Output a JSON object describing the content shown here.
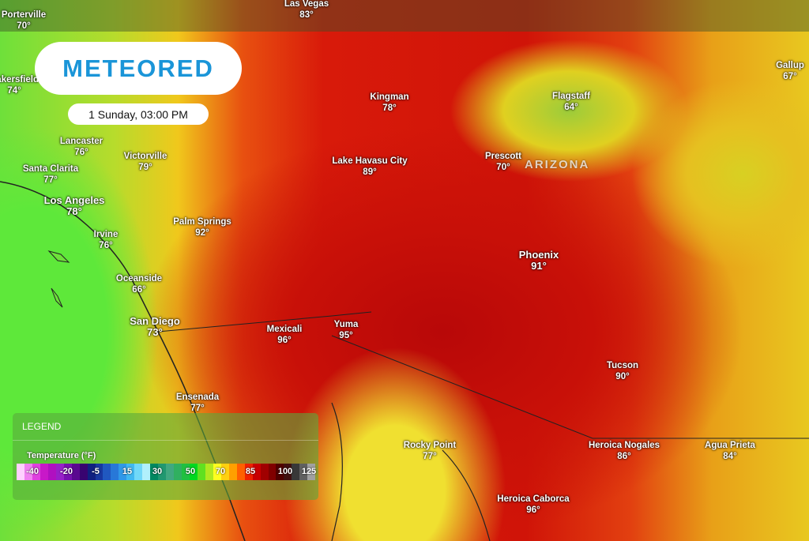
{
  "logo": {
    "text": "METEORED"
  },
  "timestamp": "1 Sunday, 03:00 PM",
  "state_label": "ARIZONA",
  "cities": [
    {
      "name": "Porterville",
      "temp": "70°"
    },
    {
      "name": "Las Vegas",
      "temp": "83°"
    },
    {
      "name": "Gallup",
      "temp": "67°"
    },
    {
      "name": "Bakersfield",
      "temp": "74°"
    },
    {
      "name": "Kingman",
      "temp": "78°"
    },
    {
      "name": "Flagstaff",
      "temp": "64°"
    },
    {
      "name": "Lancaster",
      "temp": "76°"
    },
    {
      "name": "Victorville",
      "temp": "79°"
    },
    {
      "name": "Prescott",
      "temp": "70°"
    },
    {
      "name": "Lake Havasu City",
      "temp": "89°"
    },
    {
      "name": "Santa Clarita",
      "temp": "77°"
    },
    {
      "name": "Los Angeles",
      "temp": "78°"
    },
    {
      "name": "Palm Springs",
      "temp": "92°"
    },
    {
      "name": "Irvine",
      "temp": "76°"
    },
    {
      "name": "Phoenix",
      "temp": "91°"
    },
    {
      "name": "Oceanside",
      "temp": "66°"
    },
    {
      "name": "San Diego",
      "temp": "73°"
    },
    {
      "name": "Yuma",
      "temp": "95°"
    },
    {
      "name": "Mexicali",
      "temp": "96°"
    },
    {
      "name": "Tucson",
      "temp": "90°"
    },
    {
      "name": "Ensenada",
      "temp": "77°"
    },
    {
      "name": "Rocky Point",
      "temp": "77°"
    },
    {
      "name": "Heroica Nogales",
      "temp": "86°"
    },
    {
      "name": "Agua Prieta",
      "temp": "84°"
    },
    {
      "name": "Heroica Caborca",
      "temp": "96°"
    }
  ],
  "legend": {
    "title": "LEGEND",
    "variable": "Temperature (°F)",
    "ticks": [
      "-40",
      "-20",
      "-5",
      "15",
      "30",
      "50",
      "70",
      "85",
      "100",
      "125"
    ],
    "colors": [
      "#ffd0ff",
      "#f080f0",
      "#e040e0",
      "#c818c8",
      "#b010c0",
      "#9820c8",
      "#7810b0",
      "#5a0890",
      "#380470",
      "#102080",
      "#1838a0",
      "#2058c0",
      "#2878d8",
      "#3098e8",
      "#40b8f0",
      "#70d8f8",
      "#b0f0fc",
      "#008860",
      "#209870",
      "#40a880",
      "#30b060",
      "#20c040",
      "#00d820",
      "#60e020",
      "#b0e820",
      "#ffff20",
      "#ffd010",
      "#ffa000",
      "#ff6000",
      "#ee2000",
      "#c80000",
      "#a00000",
      "#800000",
      "#500000",
      "#401010",
      "#383838",
      "#606060",
      "#a0a0a0"
    ]
  }
}
